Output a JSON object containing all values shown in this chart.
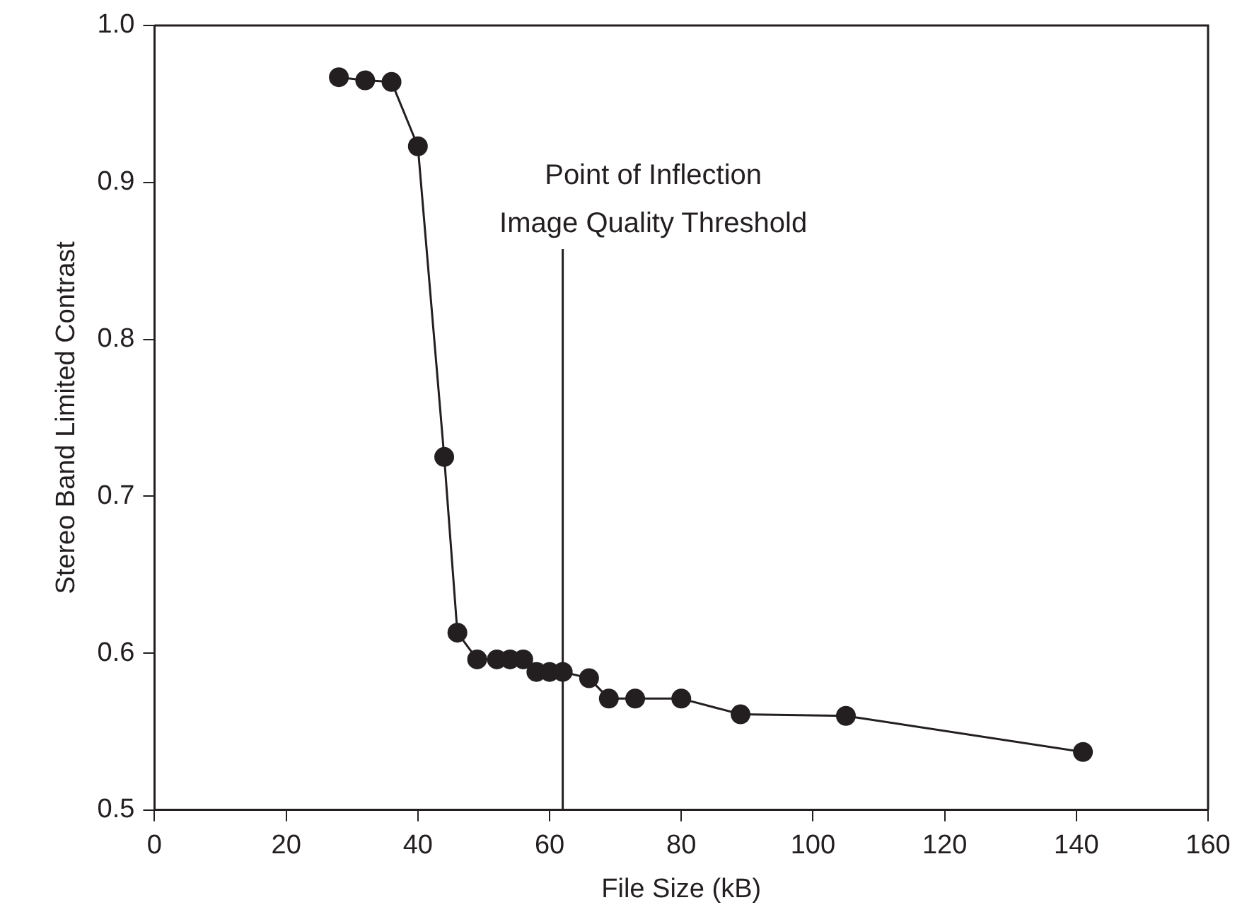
{
  "chart_data": {
    "type": "line",
    "xlabel": "File Size (kB)",
    "ylabel": "Stereo Band Limited Contrast",
    "x": [
      28,
      32,
      36,
      40,
      44,
      46,
      49,
      52,
      54,
      56,
      58,
      60,
      62,
      66,
      69,
      73,
      80,
      89,
      105,
      141
    ],
    "series": [
      {
        "color": "#231f20",
        "values": [
          0.967,
          0.965,
          0.964,
          0.923,
          0.725,
          0.613,
          0.596,
          0.596,
          0.596,
          0.596,
          0.588,
          0.588,
          0.588,
          0.584,
          0.571,
          0.571,
          0.571,
          0.561,
          0.56,
          0.537
        ]
      }
    ],
    "xlim": [
      0,
      160
    ],
    "xticks": [
      0,
      20,
      40,
      60,
      80,
      100,
      120,
      140,
      160
    ],
    "ylim": [
      0.5,
      1.0
    ],
    "yticks": [
      {
        "value": 0.5,
        "label": "0.5"
      },
      {
        "value": 0.6,
        "label": "0.6"
      },
      {
        "value": 0.7,
        "label": "0.7"
      },
      {
        "value": 0.8,
        "label": "0.8"
      },
      {
        "value": 0.9,
        "label": "0.9"
      },
      {
        "value": 1.0,
        "label": "1.0"
      }
    ],
    "ref_lines": [
      {
        "axis": "x",
        "value": 62,
        "label": "Point of Inflection\nImage Quality Threshold",
        "color": "#231f20"
      }
    ],
    "grid": false,
    "legend": false,
    "marker": "circle",
    "line_style": "solid"
  }
}
